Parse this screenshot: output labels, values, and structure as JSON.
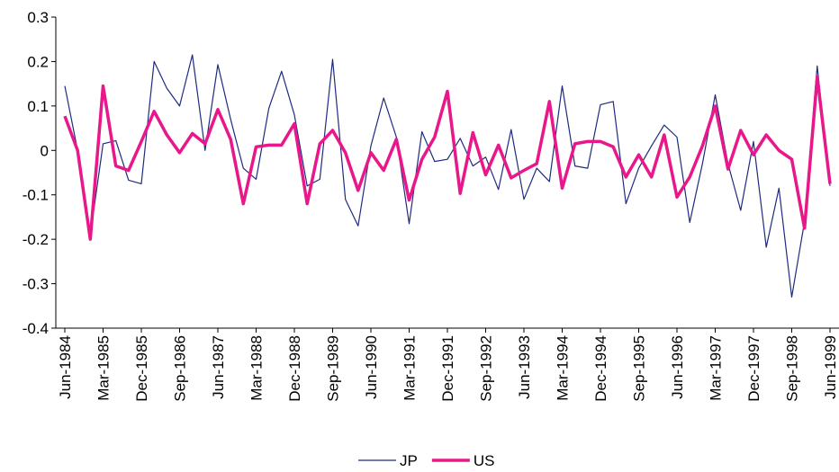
{
  "chart_data": {
    "type": "line",
    "categories": [
      "Jun-1984",
      null,
      null,
      "Mar-1985",
      null,
      null,
      "Dec-1985",
      null,
      null,
      "Sep-1986",
      null,
      null,
      "Jun-1987",
      null,
      null,
      "Mar-1988",
      null,
      null,
      "Dec-1988",
      null,
      null,
      "Sep-1989",
      null,
      null,
      "Jun-1990",
      null,
      null,
      "Mar-1991",
      null,
      null,
      "Dec-1991",
      null,
      null,
      "Sep-1992",
      null,
      null,
      "Jun-1993",
      null,
      null,
      "Mar-1994",
      null,
      null,
      "Dec-1994",
      null,
      null,
      "Sep-1995",
      null,
      null,
      "Jun-1996",
      null,
      null,
      "Mar-1997",
      null,
      null,
      "Dec-1997",
      null,
      null,
      "Sep-1998",
      null,
      null,
      "Jun-1999"
    ],
    "series": [
      {
        "name": "JP",
        "color": "#1f2a80",
        "width": 1.2,
        "values": [
          0.145,
          0.0,
          -0.19,
          0.015,
          0.022,
          -0.067,
          -0.075,
          0.2,
          0.14,
          0.1,
          0.215,
          0.0,
          0.193,
          0.07,
          -0.04,
          -0.065,
          0.095,
          0.178,
          0.08,
          -0.08,
          -0.065,
          0.205,
          -0.11,
          -0.17,
          0.01,
          0.118,
          0.03,
          -0.165,
          0.042,
          -0.025,
          -0.02,
          0.027,
          -0.035,
          -0.015,
          -0.088,
          0.047,
          -0.11,
          -0.04,
          -0.07,
          0.145,
          -0.035,
          -0.04,
          0.103,
          0.11,
          -0.12,
          -0.04,
          0.01,
          0.057,
          0.03,
          -0.162,
          -0.03,
          0.125,
          -0.03,
          -0.135,
          0.02,
          -0.218,
          -0.085,
          -0.33,
          -0.16,
          0.19,
          -0.08
        ]
      },
      {
        "name": "US",
        "color": "#e8178a",
        "width": 3.5,
        "values": [
          0.077,
          0.0,
          -0.2,
          0.145,
          -0.035,
          -0.045,
          0.02,
          0.088,
          0.035,
          -0.005,
          0.038,
          0.015,
          0.092,
          0.025,
          -0.12,
          0.008,
          0.012,
          0.012,
          0.06,
          -0.12,
          0.015,
          0.045,
          -0.005,
          -0.09,
          -0.005,
          -0.045,
          0.025,
          -0.112,
          -0.02,
          0.03,
          0.133,
          -0.097,
          0.04,
          -0.055,
          0.012,
          -0.062,
          -0.045,
          -0.03,
          0.11,
          -0.085,
          0.015,
          0.02,
          0.02,
          0.008,
          -0.06,
          -0.01,
          -0.06,
          0.035,
          -0.105,
          -0.06,
          0.01,
          0.1,
          -0.042,
          0.045,
          -0.01,
          0.035,
          0.0,
          -0.02,
          -0.175,
          0.165,
          -0.075
        ]
      }
    ],
    "ylim": [
      -0.4,
      0.3
    ],
    "yticks": [
      -0.4,
      -0.3,
      -0.2,
      -0.1,
      0,
      0.1,
      0.2,
      0.3
    ],
    "grid": false,
    "legend": "bottom"
  }
}
